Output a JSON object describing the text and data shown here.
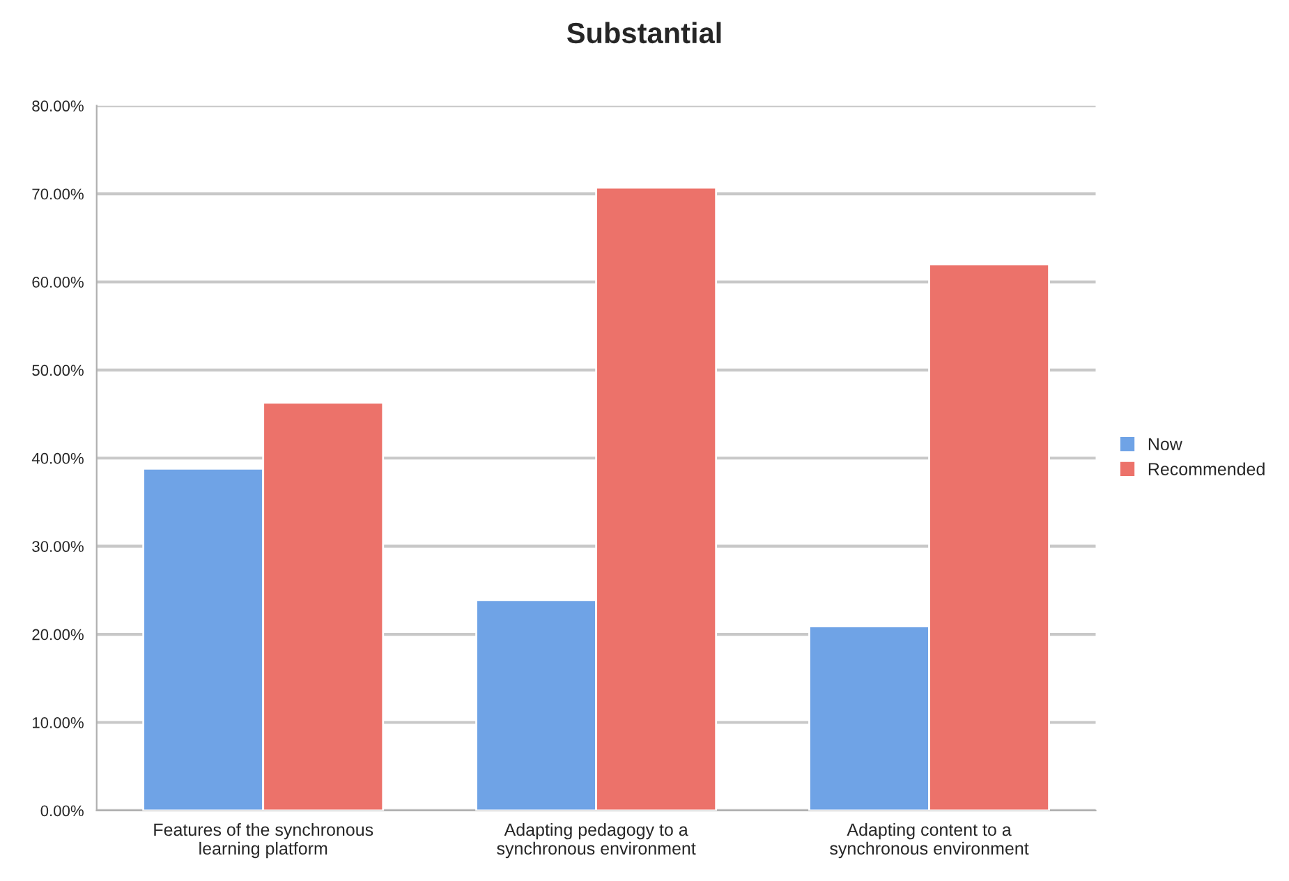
{
  "chart_data": {
    "type": "bar",
    "title": "Substantial",
    "categories": [
      "Features of the synchronous learning platform",
      "Adapting pedagogy to a synchronous environment",
      "Adapting content to a synchronous environment"
    ],
    "series": [
      {
        "name": "Now",
        "color": "#6fa3e6",
        "values": [
          38.8,
          23.9,
          20.9
        ]
      },
      {
        "name": "Recommended",
        "color": "#ec726a",
        "values": [
          46.3,
          70.7,
          62.0
        ]
      }
    ],
    "ylim": [
      0,
      80
    ],
    "yticks": [
      {
        "value": 0,
        "label": "0.00%"
      },
      {
        "value": 10,
        "label": "10.00%"
      },
      {
        "value": 20,
        "label": "20.00%"
      },
      {
        "value": 30,
        "label": "30.00%"
      },
      {
        "value": 40,
        "label": "40.00%"
      },
      {
        "value": 50,
        "label": "50.00%"
      },
      {
        "value": 60,
        "label": "60.00%"
      },
      {
        "value": 70,
        "label": "70.00%"
      },
      {
        "value": 80,
        "label": "80.00%"
      }
    ],
    "grid": "y",
    "legend": "right"
  }
}
